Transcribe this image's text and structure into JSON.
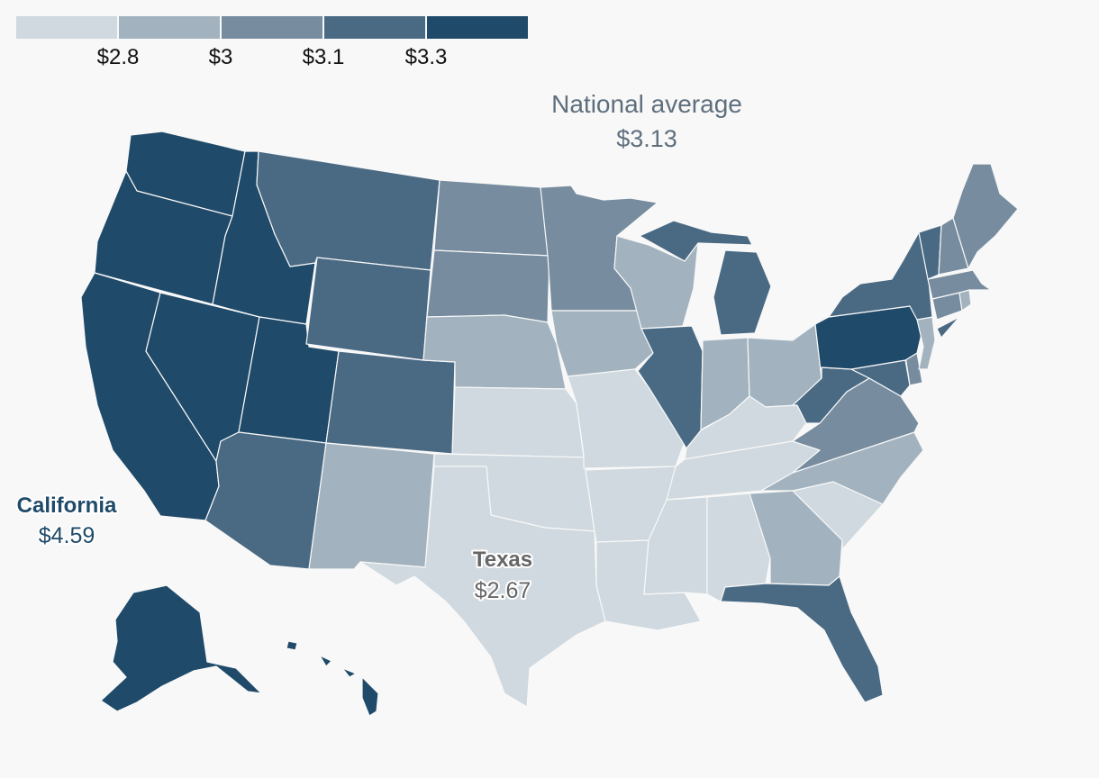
{
  "palette": {
    "c1": "#cfd9df",
    "c2": "#a2b3bf",
    "c3": "#778d9f",
    "c4": "#4a6a84",
    "c5": "#1f4a69"
  },
  "legend": {
    "classes": [
      "c1",
      "c2",
      "c3",
      "c4",
      "c5"
    ],
    "breaks": [
      "$2.8",
      "$3",
      "$3.1",
      "$3.3"
    ]
  },
  "national_average": {
    "title": "National average",
    "value": "$3.13"
  },
  "callouts": {
    "california": {
      "name": "California",
      "value": "$4.59",
      "color": "#1f4a69"
    },
    "texas": {
      "name": "Texas",
      "value": "$2.67",
      "color": "#666666"
    }
  },
  "states": [
    {
      "name": "Washington",
      "class": "c5"
    },
    {
      "name": "Oregon",
      "class": "c5"
    },
    {
      "name": "California",
      "class": "c5"
    },
    {
      "name": "Nevada",
      "class": "c5"
    },
    {
      "name": "Idaho",
      "class": "c5"
    },
    {
      "name": "Utah",
      "class": "c5"
    },
    {
      "name": "Arizona",
      "class": "c4"
    },
    {
      "name": "Montana",
      "class": "c4"
    },
    {
      "name": "Wyoming",
      "class": "c4"
    },
    {
      "name": "Colorado",
      "class": "c4"
    },
    {
      "name": "New Mexico",
      "class": "c2"
    },
    {
      "name": "North Dakota",
      "class": "c3"
    },
    {
      "name": "South Dakota",
      "class": "c3"
    },
    {
      "name": "Nebraska",
      "class": "c2"
    },
    {
      "name": "Kansas",
      "class": "c1"
    },
    {
      "name": "Oklahoma",
      "class": "c1"
    },
    {
      "name": "Texas",
      "class": "c1"
    },
    {
      "name": "Minnesota",
      "class": "c3"
    },
    {
      "name": "Iowa",
      "class": "c2"
    },
    {
      "name": "Missouri",
      "class": "c1"
    },
    {
      "name": "Arkansas",
      "class": "c1"
    },
    {
      "name": "Louisiana",
      "class": "c1"
    },
    {
      "name": "Wisconsin",
      "class": "c2"
    },
    {
      "name": "Illinois",
      "class": "c4"
    },
    {
      "name": "Michigan",
      "class": "c4"
    },
    {
      "name": "Indiana",
      "class": "c2"
    },
    {
      "name": "Ohio",
      "class": "c2"
    },
    {
      "name": "Kentucky",
      "class": "c1"
    },
    {
      "name": "Tennessee",
      "class": "c1"
    },
    {
      "name": "Mississippi",
      "class": "c1"
    },
    {
      "name": "Alabama",
      "class": "c1"
    },
    {
      "name": "Georgia",
      "class": "c2"
    },
    {
      "name": "Florida",
      "class": "c4"
    },
    {
      "name": "South Carolina",
      "class": "c1"
    },
    {
      "name": "North Carolina",
      "class": "c2"
    },
    {
      "name": "Virginia",
      "class": "c3"
    },
    {
      "name": "West Virginia",
      "class": "c4"
    },
    {
      "name": "Maryland",
      "class": "c4"
    },
    {
      "name": "Delaware",
      "class": "c3"
    },
    {
      "name": "Pennsylvania",
      "class": "c5"
    },
    {
      "name": "New Jersey",
      "class": "c2"
    },
    {
      "name": "New York",
      "class": "c4"
    },
    {
      "name": "Connecticut",
      "class": "c3"
    },
    {
      "name": "Rhode Island",
      "class": "c2"
    },
    {
      "name": "Massachusetts",
      "class": "c3"
    },
    {
      "name": "Vermont",
      "class": "c4"
    },
    {
      "name": "New Hampshire",
      "class": "c3"
    },
    {
      "name": "Maine",
      "class": "c3"
    },
    {
      "name": "Alaska",
      "class": "c5"
    },
    {
      "name": "Hawaii",
      "class": "c5"
    }
  ]
}
